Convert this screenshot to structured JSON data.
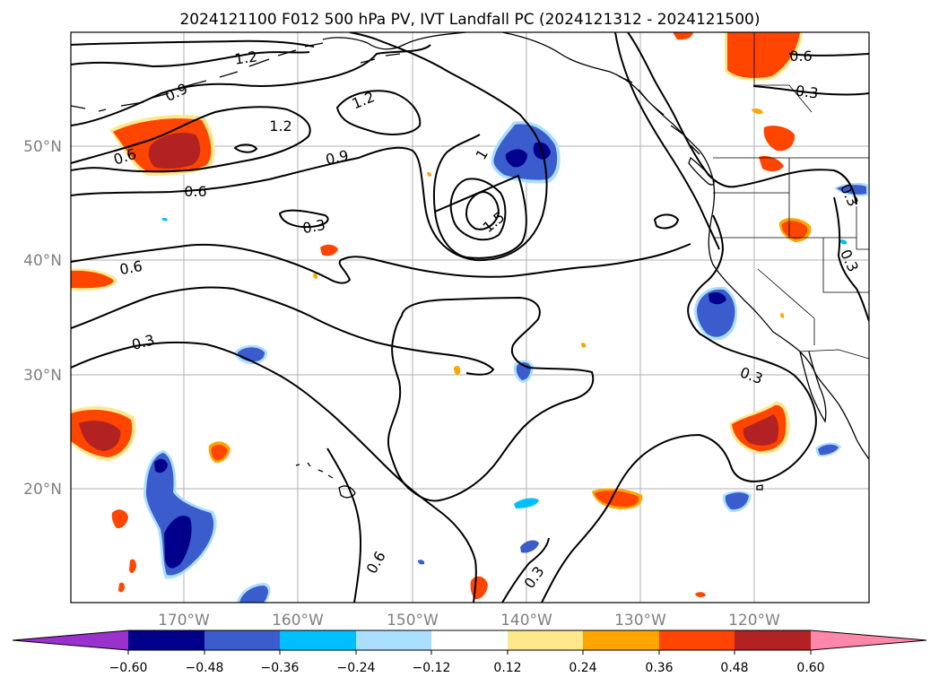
{
  "title": "2024121100 F012 500 hPa PV, IVT Landfall PC (2024121312 - 2024121500)",
  "map": {
    "lat_labels": [
      "50°N",
      "40°N",
      "30°N",
      "20°N"
    ],
    "lon_labels": [
      "170°W",
      "160°W",
      "150°W",
      "140°W",
      "130°W",
      "120°W"
    ],
    "gridlines": true,
    "coastline_color": "#000000"
  },
  "contours": {
    "line_color": "#000000",
    "labels": [
      "1.2",
      "0.9",
      "1.2",
      "1.2",
      "0.6",
      "0.9",
      "0.6",
      "0.3",
      "1",
      "1.5",
      "0.6",
      "0.3",
      "0.3",
      "0.6",
      "0.3",
      "0.6",
      "0.3",
      "0.3",
      "0.3"
    ]
  },
  "colorbar": {
    "tick_labels": [
      "−0.60",
      "−0.48",
      "−0.36",
      "−0.24",
      "−0.12",
      "0.12",
      "0.24",
      "0.36",
      "0.48",
      "0.60"
    ],
    "colors": [
      "#9932cc",
      "#00008b",
      "#3a5ccc",
      "#00bfff",
      "#aadfff",
      "#ffffff",
      "#ffe88c",
      "#ffa500",
      "#ff4500",
      "#b22222",
      "#ff88aa"
    ],
    "extend": "both"
  },
  "shading_colors": {
    "neg_light": "#aadfff",
    "neg_mid": "#00bfff",
    "neg_strong": "#3a5ccc",
    "neg_max": "#00008b",
    "pos_light": "#ffe88c",
    "pos_mid": "#ffa500",
    "pos_strong": "#ff4500",
    "pos_max": "#b22222",
    "pos_extreme": "#ff88aa"
  }
}
